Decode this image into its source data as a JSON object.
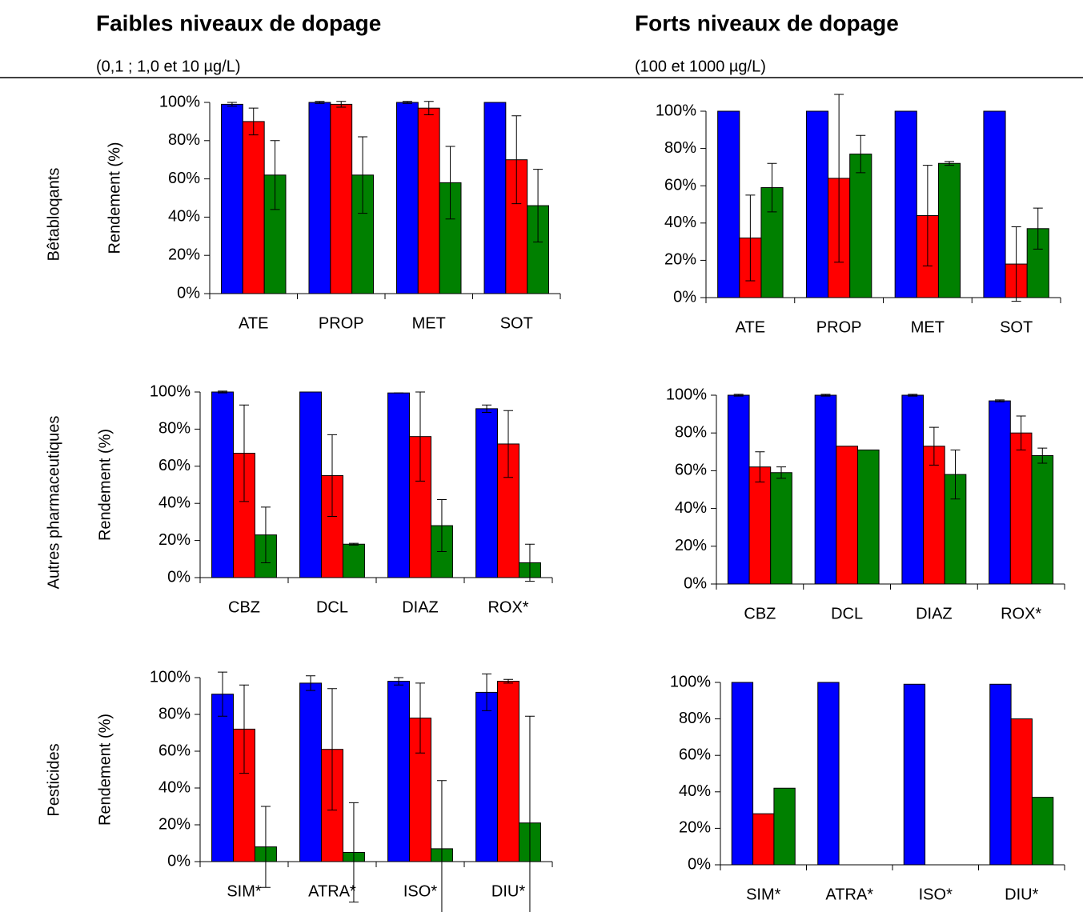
{
  "columns": [
    {
      "title": "Faibles niveaux de dopage",
      "subtitle": "(0,1 ; 1,0 et 10 µg/L)"
    },
    {
      "title": "Forts niveaux de dopage",
      "subtitle": "(100 et 1000 µg/L)"
    }
  ],
  "rows": [
    "Bêtabloqants",
    "Autres pharmaceutiques",
    "Pesticides"
  ],
  "chart_data": [
    {
      "type": "bar",
      "ylabel": "Rendement (%)",
      "categories": [
        "ATE",
        "PROP",
        "MET",
        "SOT"
      ],
      "series": [
        {
          "color": "#0000ff",
          "values": [
            99,
            100,
            100,
            100
          ],
          "errors": [
            1,
            0.5,
            0.5,
            0
          ]
        },
        {
          "color": "#ff0000",
          "values": [
            90,
            99,
            97,
            70
          ],
          "errors": [
            7,
            1.5,
            3.5,
            23
          ]
        },
        {
          "color": "#008000",
          "values": [
            62,
            62,
            58,
            46
          ],
          "errors": [
            18,
            20,
            19,
            19
          ]
        }
      ],
      "ylim": [
        0,
        100
      ],
      "yticks": [
        {
          "value": 0,
          "label": "0%"
        },
        {
          "value": 20,
          "label": "20%"
        },
        {
          "value": 40,
          "label": "40%"
        },
        {
          "value": 60,
          "label": "60%"
        },
        {
          "value": 80,
          "label": "80%"
        },
        {
          "value": 100,
          "label": "100%"
        }
      ]
    },
    {
      "type": "bar",
      "categories": [
        "ATE",
        "PROP",
        "MET",
        "SOT"
      ],
      "series": [
        {
          "color": "#0000ff",
          "values": [
            100,
            100,
            100,
            100
          ],
          "errors": [
            null,
            null,
            null,
            null
          ]
        },
        {
          "color": "#ff0000",
          "values": [
            32,
            64,
            44,
            18
          ],
          "errors": [
            23,
            45,
            27,
            20
          ]
        },
        {
          "color": "#008000",
          "values": [
            59,
            77,
            72,
            37
          ],
          "errors": [
            13,
            10,
            1,
            11
          ]
        }
      ],
      "ylim": [
        0,
        100
      ],
      "yticks": [
        {
          "value": 0,
          "label": "0%"
        },
        {
          "value": 20,
          "label": "20%"
        },
        {
          "value": 40,
          "label": "40%"
        },
        {
          "value": 60,
          "label": "60%"
        },
        {
          "value": 80,
          "label": "80%"
        },
        {
          "value": 100,
          "label": "100%"
        }
      ]
    },
    {
      "type": "bar",
      "ylabel": "Rendement (%)",
      "categories": [
        "CBZ",
        "DCL",
        "DIAZ",
        "ROX*"
      ],
      "series": [
        {
          "color": "#0000ff",
          "values": [
            100,
            100,
            99.5,
            91
          ],
          "errors": [
            0.5,
            0,
            0,
            2
          ]
        },
        {
          "color": "#ff0000",
          "values": [
            67,
            55,
            76,
            72
          ],
          "errors": [
            26,
            22,
            24,
            18
          ]
        },
        {
          "color": "#008000",
          "values": [
            23,
            18,
            28,
            8
          ],
          "errors": [
            15,
            0.5,
            14,
            10
          ]
        }
      ],
      "ylim": [
        0,
        100
      ],
      "yticks": [
        {
          "value": 0,
          "label": "0%"
        },
        {
          "value": 20,
          "label": "20%"
        },
        {
          "value": 40,
          "label": "40%"
        },
        {
          "value": 60,
          "label": "60%"
        },
        {
          "value": 80,
          "label": "80%"
        },
        {
          "value": 100,
          "label": "100%"
        }
      ]
    },
    {
      "type": "bar",
      "categories": [
        "CBZ",
        "DCL",
        "DIAZ",
        "ROX*"
      ],
      "series": [
        {
          "color": "#0000ff",
          "values": [
            100,
            100,
            100,
            97
          ],
          "errors": [
            0.5,
            0.5,
            0.5,
            0.5
          ]
        },
        {
          "color": "#ff0000",
          "values": [
            62,
            73,
            73,
            80
          ],
          "errors": [
            8,
            null,
            10,
            9
          ]
        },
        {
          "color": "#008000",
          "values": [
            59,
            71,
            58,
            68
          ],
          "errors": [
            3,
            null,
            13,
            4
          ]
        }
      ],
      "ylim": [
        0,
        100
      ],
      "yticks": [
        {
          "value": 0,
          "label": "0%"
        },
        {
          "value": 20,
          "label": "20%"
        },
        {
          "value": 40,
          "label": "40%"
        },
        {
          "value": 60,
          "label": "60%"
        },
        {
          "value": 80,
          "label": "80%"
        },
        {
          "value": 100,
          "label": "100%"
        }
      ]
    },
    {
      "type": "bar",
      "ylabel": "Rendement (%)",
      "categories": [
        "SIM*",
        "ATRA*",
        "ISO*",
        "DIU*"
      ],
      "series": [
        {
          "color": "#0000ff",
          "values": [
            91,
            97,
            98,
            92
          ],
          "errors": [
            12,
            4,
            2,
            10
          ]
        },
        {
          "color": "#ff0000",
          "values": [
            72,
            61,
            78,
            98
          ],
          "errors": [
            24,
            33,
            19,
            1
          ]
        },
        {
          "color": "#008000",
          "values": [
            8,
            5,
            7,
            21
          ],
          "errors": [
            22,
            27,
            37,
            58
          ]
        }
      ],
      "ylim": [
        0,
        100
      ],
      "yticks": [
        {
          "value": 0,
          "label": "0%"
        },
        {
          "value": 20,
          "label": "20%"
        },
        {
          "value": 40,
          "label": "40%"
        },
        {
          "value": 60,
          "label": "60%"
        },
        {
          "value": 80,
          "label": "80%"
        },
        {
          "value": 100,
          "label": "100%"
        }
      ]
    },
    {
      "type": "bar",
      "categories": [
        "SIM*",
        "ATRA*",
        "ISO*",
        "DIU*"
      ],
      "series": [
        {
          "color": "#0000ff",
          "values": [
            100,
            100,
            99,
            99
          ],
          "errors": [
            null,
            null,
            null,
            null
          ]
        },
        {
          "color": "#ff0000",
          "values": [
            28,
            null,
            null,
            80
          ],
          "errors": [
            null,
            null,
            null,
            null
          ]
        },
        {
          "color": "#008000",
          "values": [
            42,
            null,
            null,
            37
          ],
          "errors": [
            null,
            null,
            null,
            null
          ]
        }
      ],
      "ylim": [
        0,
        100
      ],
      "yticks": [
        {
          "value": 0,
          "label": "0%"
        },
        {
          "value": 20,
          "label": "20%"
        },
        {
          "value": 40,
          "label": "40%"
        },
        {
          "value": 60,
          "label": "60%"
        },
        {
          "value": 80,
          "label": "80%"
        },
        {
          "value": 100,
          "label": "100%"
        }
      ]
    }
  ]
}
